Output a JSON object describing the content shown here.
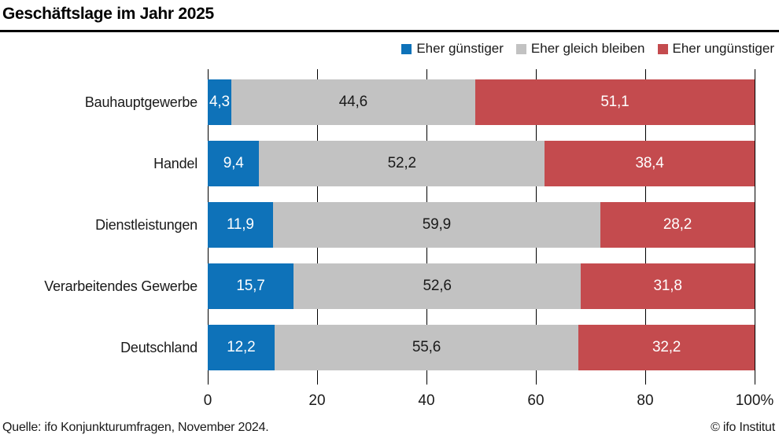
{
  "title": "Geschäftslage im Jahr 2025",
  "chart_data": {
    "type": "bar",
    "variant": "horizontal-stacked",
    "title": "Geschäftslage im Jahr 2025",
    "categories": [
      "Bauhauptgewerbe",
      "Handel",
      "Dienstleistungen",
      "Verarbeitendes Gewerbe",
      "Deutschland"
    ],
    "series": [
      {
        "name": "Eher günstiger",
        "color": "#0e72b9",
        "label_color": "#ffffff",
        "values": [
          4.3,
          9.4,
          11.9,
          15.7,
          12.2
        ],
        "display": [
          "4,3",
          "9,4",
          "11,9",
          "15,7",
          "12,2"
        ]
      },
      {
        "name": "Eher gleich bleiben",
        "color": "#c2c2c2",
        "label_color": "#1a1a1a",
        "values": [
          44.6,
          52.2,
          59.9,
          52.6,
          55.6
        ],
        "display": [
          "44,6",
          "52,2",
          "59,9",
          "52,6",
          "55,6"
        ]
      },
      {
        "name": "Eher ungünstiger",
        "color": "#c44b4e",
        "label_color": "#ffffff",
        "values": [
          51.1,
          38.4,
          28.2,
          31.8,
          32.2
        ],
        "display": [
          "51,1",
          "38,4",
          "28,2",
          "31,8",
          "32,2"
        ]
      }
    ],
    "x_ticks": [
      "0",
      "20",
      "40",
      "60",
      "80",
      "100%"
    ],
    "xlim": [
      0,
      100
    ],
    "grid": true,
    "gridline_color": "#000000",
    "legend_position": "top-right"
  },
  "footer": {
    "source": "Quelle: ifo Konjunkturumfragen, November 2024.",
    "copyright": "© ifo Institut"
  }
}
